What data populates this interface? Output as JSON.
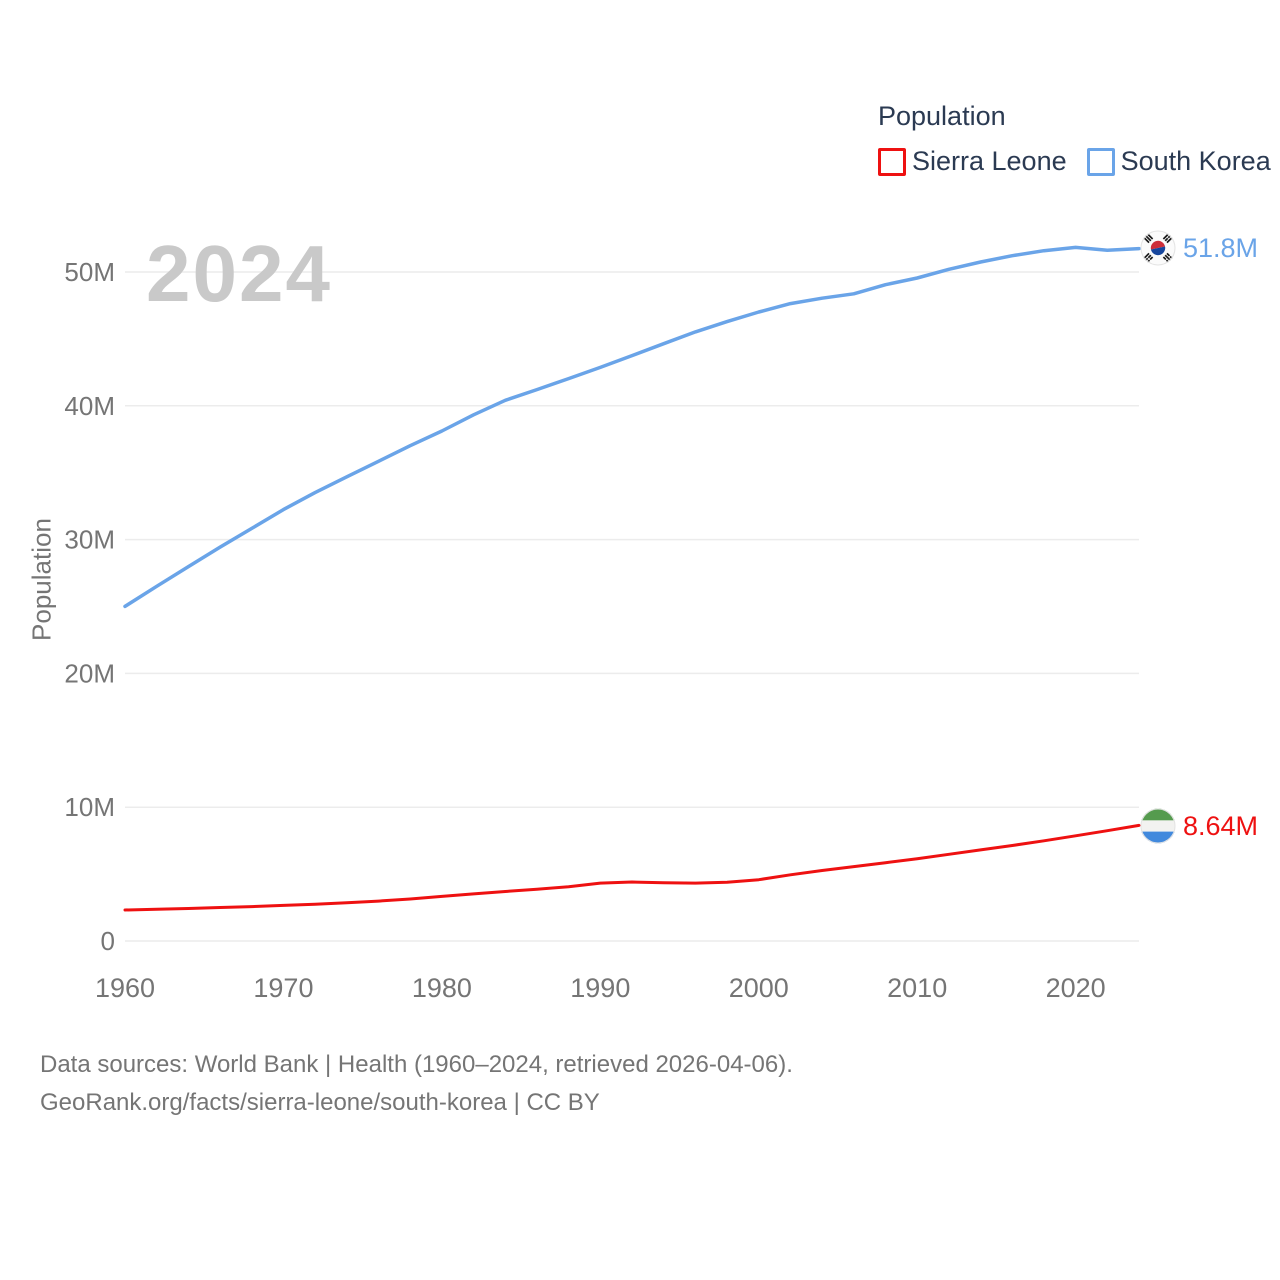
{
  "legend": {
    "title": "Population",
    "items": [
      {
        "label": "Sierra Leone",
        "color": "#ee1111"
      },
      {
        "label": "South Korea",
        "color": "#6aa4e8"
      }
    ]
  },
  "watermark": "2024",
  "footer": {
    "line1": "Data sources: World Bank | Health (1960–2024, retrieved 2026-04-06).",
    "line2": "GeoRank.org/facts/sierra-leone/south-korea | CC BY"
  },
  "chart_data": {
    "type": "line",
    "title": "Population",
    "xlabel": "",
    "ylabel": "Population",
    "units": "millions",
    "xlim": [
      1960,
      2024
    ],
    "ylim": [
      0,
      50
    ],
    "grid": "horizontal",
    "legend_position": "top-right",
    "x_ticks": [
      1960,
      1970,
      1980,
      1990,
      2000,
      2010,
      2020
    ],
    "y_ticks": [
      {
        "value": 0,
        "label": "0"
      },
      {
        "value": 10,
        "label": "10M"
      },
      {
        "value": 20,
        "label": "20M"
      },
      {
        "value": 30,
        "label": "30M"
      },
      {
        "value": 40,
        "label": "40M"
      },
      {
        "value": 50,
        "label": "50M"
      }
    ],
    "series": [
      {
        "name": "Sierra Leone",
        "color": "#ee1111",
        "end_label": "8.64M",
        "flag_icon": "sierra-leone-flag",
        "x": [
          1960,
          1962,
          1964,
          1966,
          1968,
          1970,
          1972,
          1974,
          1976,
          1978,
          1980,
          1982,
          1984,
          1986,
          1988,
          1990,
          1992,
          1994,
          1996,
          1998,
          2000,
          2002,
          2004,
          2006,
          2008,
          2010,
          2012,
          2014,
          2016,
          2018,
          2020,
          2022,
          2024
        ],
        "y": [
          2.32,
          2.37,
          2.43,
          2.5,
          2.57,
          2.66,
          2.75,
          2.86,
          2.98,
          3.14,
          3.33,
          3.52,
          3.7,
          3.87,
          4.06,
          4.33,
          4.41,
          4.36,
          4.33,
          4.39,
          4.58,
          4.95,
          5.27,
          5.56,
          5.85,
          6.15,
          6.48,
          6.81,
          7.14,
          7.49,
          7.86,
          8.24,
          8.64
        ]
      },
      {
        "name": "South Korea",
        "color": "#6aa4e8",
        "end_label": "51.8M",
        "flag_icon": "south-korea-flag",
        "x": [
          1960,
          1962,
          1964,
          1966,
          1968,
          1970,
          1972,
          1974,
          1976,
          1978,
          1980,
          1982,
          1984,
          1986,
          1988,
          1990,
          1992,
          1994,
          1996,
          1998,
          2000,
          2002,
          2004,
          2006,
          2008,
          2010,
          2012,
          2014,
          2016,
          2018,
          2020,
          2022,
          2024
        ],
        "y": [
          25.01,
          26.51,
          27.98,
          29.44,
          30.84,
          32.24,
          33.51,
          34.69,
          35.85,
          37.02,
          38.12,
          39.33,
          40.41,
          41.21,
          42.03,
          42.87,
          43.75,
          44.64,
          45.52,
          46.29,
          47.01,
          47.64,
          48.04,
          48.37,
          49.05,
          49.55,
          50.2,
          50.75,
          51.22,
          51.59,
          51.84,
          51.63,
          51.75
        ]
      }
    ]
  },
  "style": {
    "axis_text_color": "#757575",
    "legend_text_color": "#2b3a52",
    "gridline_color": "#ececec",
    "watermark_color": "#c9c9c9"
  }
}
